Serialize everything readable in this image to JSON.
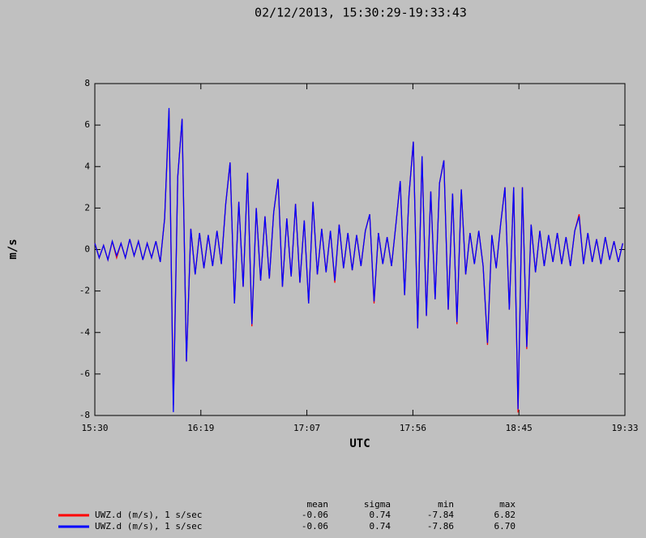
{
  "chart_data": {
    "type": "line",
    "title": "02/12/2013, 15:30:29-19:33:43",
    "xlabel": "UTC",
    "ylabel": "m/s",
    "xlim": [
      930,
      1173
    ],
    "xticks": [
      {
        "value": 930,
        "label": "15:30"
      },
      {
        "value": 978.6,
        "label": "16:19"
      },
      {
        "value": 1027.2,
        "label": "17:07"
      },
      {
        "value": 1075.8,
        "label": "17:56"
      },
      {
        "value": 1124.4,
        "label": "18:45"
      },
      {
        "value": 1173,
        "label": "19:33"
      }
    ],
    "ylim": [
      -8,
      8
    ],
    "yticks": [
      -8,
      -6,
      -4,
      -2,
      0,
      2,
      4,
      6,
      8
    ],
    "x": [
      930,
      932,
      934,
      936,
      938,
      940,
      942,
      944,
      946,
      948,
      950,
      952,
      954,
      956,
      958,
      960,
      962,
      964,
      966,
      968,
      970,
      972,
      974,
      976,
      978,
      980,
      982,
      984,
      986,
      988,
      990,
      992,
      994,
      996,
      998,
      1000,
      1002,
      1004,
      1006,
      1008,
      1010,
      1012,
      1014,
      1016,
      1018,
      1020,
      1022,
      1024,
      1026,
      1028,
      1030,
      1032,
      1034,
      1036,
      1038,
      1040,
      1042,
      1044,
      1046,
      1048,
      1050,
      1052,
      1054,
      1056,
      1058,
      1060,
      1062,
      1064,
      1066,
      1068,
      1070,
      1072,
      1074,
      1076,
      1078,
      1080,
      1082,
      1084,
      1086,
      1088,
      1090,
      1092,
      1094,
      1096,
      1098,
      1100,
      1102,
      1104,
      1106,
      1108,
      1110,
      1112,
      1114,
      1116,
      1118,
      1120,
      1122,
      1124,
      1126,
      1128,
      1130,
      1132,
      1134,
      1136,
      1138,
      1140,
      1142,
      1144,
      1146,
      1148,
      1150,
      1152,
      1154,
      1156,
      1158,
      1160,
      1162,
      1164,
      1166,
      1168,
      1170,
      1172
    ],
    "series": [
      {
        "name": "UWZ.d (m/s), 1 s/sec",
        "color": "#ff0000",
        "values": [
          0.3,
          -0.4,
          0.2,
          -0.5,
          0.4,
          -0.4,
          0.3,
          -0.4,
          0.5,
          -0.3,
          0.4,
          -0.5,
          0.3,
          -0.4,
          0.4,
          -0.6,
          1.5,
          6.7,
          -7.5,
          3.5,
          6.3,
          -5.4,
          1.0,
          -1.2,
          0.8,
          -0.9,
          0.7,
          -0.8,
          0.9,
          -0.7,
          2.2,
          4.2,
          -2.6,
          2.3,
          -1.8,
          3.7,
          -3.7,
          2.0,
          -1.5,
          1.6,
          -1.4,
          1.8,
          3.4,
          -1.8,
          1.5,
          -1.3,
          2.2,
          -1.6,
          1.4,
          -2.6,
          2.3,
          -1.2,
          1.0,
          -1.1,
          0.9,
          -1.6,
          1.2,
          -0.9,
          0.8,
          -1.0,
          0.7,
          -0.8,
          0.9,
          1.7,
          -2.6,
          0.8,
          -0.7,
          0.6,
          -0.8,
          1.2,
          3.3,
          -2.2,
          2.6,
          5.2,
          -3.8,
          4.5,
          -3.2,
          2.8,
          -2.4,
          3.2,
          4.3,
          -2.9,
          2.7,
          -3.6,
          2.9,
          -1.2,
          0.8,
          -0.7,
          0.9,
          -0.8,
          -4.6,
          0.7,
          -0.9,
          1.2,
          3.0,
          -2.9,
          3.0,
          -7.86,
          3.0,
          -4.8,
          1.2,
          -1.1,
          0.9,
          -0.8,
          0.7,
          -0.6,
          0.8,
          -0.7,
          0.6,
          -0.8,
          0.9,
          1.7,
          -0.7,
          0.8,
          -0.6,
          0.5,
          -0.7,
          0.6,
          -0.5,
          0.4,
          -0.6,
          0.3
        ]
      },
      {
        "name": "UWZ.d (m/s), 1 s/sec",
        "color": "#0000ff",
        "values": [
          0.3,
          -0.4,
          0.2,
          -0.5,
          0.4,
          -0.3,
          0.3,
          -0.4,
          0.5,
          -0.3,
          0.4,
          -0.5,
          0.3,
          -0.4,
          0.4,
          -0.6,
          1.5,
          6.82,
          -7.84,
          3.5,
          6.3,
          -5.4,
          1.0,
          -1.2,
          0.8,
          -0.9,
          0.7,
          -0.8,
          0.9,
          -0.7,
          2.2,
          4.2,
          -2.6,
          2.3,
          -1.8,
          3.7,
          -3.6,
          2.0,
          -1.5,
          1.6,
          -1.4,
          1.8,
          3.4,
          -1.8,
          1.5,
          -1.3,
          2.2,
          -1.6,
          1.4,
          -2.6,
          2.3,
          -1.2,
          1.0,
          -1.1,
          0.9,
          -1.5,
          1.2,
          -0.9,
          0.8,
          -1.0,
          0.7,
          -0.8,
          0.9,
          1.7,
          -2.5,
          0.8,
          -0.7,
          0.6,
          -0.8,
          1.2,
          3.3,
          -2.2,
          2.6,
          5.2,
          -3.8,
          4.5,
          -3.2,
          2.8,
          -2.4,
          3.2,
          4.3,
          -2.9,
          2.7,
          -3.5,
          2.9,
          -1.2,
          0.8,
          -0.7,
          0.9,
          -0.8,
          -4.5,
          0.7,
          -0.9,
          1.2,
          3.0,
          -2.9,
          3.0,
          -7.7,
          3.0,
          -4.7,
          1.2,
          -1.1,
          0.9,
          -0.8,
          0.7,
          -0.6,
          0.8,
          -0.7,
          0.6,
          -0.8,
          0.9,
          1.6,
          -0.7,
          0.8,
          -0.6,
          0.5,
          -0.7,
          0.6,
          -0.5,
          0.4,
          -0.6,
          0.3
        ]
      }
    ],
    "stats": {
      "headers": [
        "mean",
        "sigma",
        "min",
        "max"
      ],
      "rows": [
        [
          "-0.06",
          "0.74",
          "-7.84",
          "6.82"
        ],
        [
          "-0.06",
          "0.74",
          "-7.86",
          "6.70"
        ]
      ]
    }
  }
}
